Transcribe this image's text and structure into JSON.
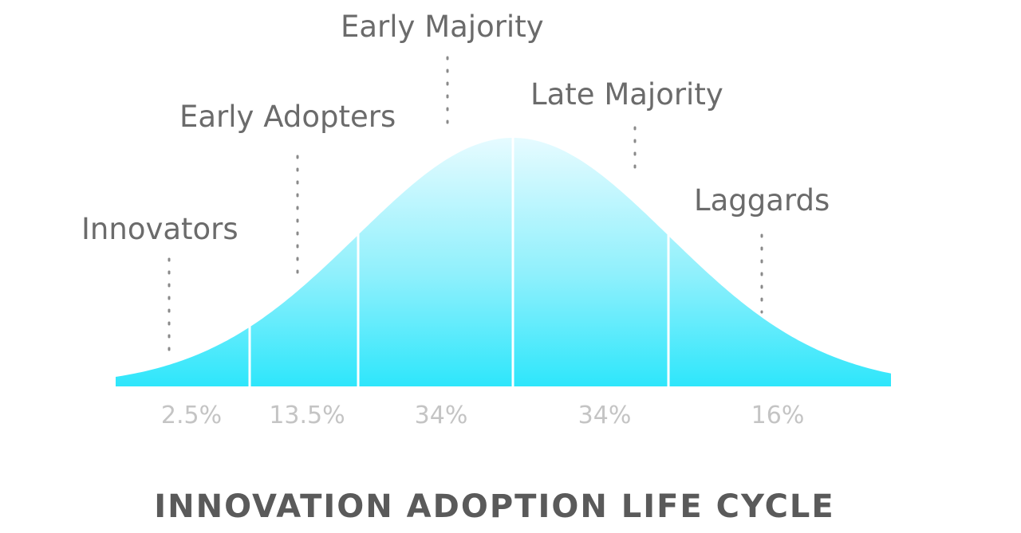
{
  "title": "INNOVATION ADOPTION LIFE CYCLE",
  "colors": {
    "curve_top": "#e6fbff",
    "curve_bottom": "#2ee6fb",
    "label_text": "#6b6b6b",
    "percent_text": "#c4c4c4",
    "title_text": "#5a5a5a"
  },
  "segments": [
    {
      "label": "Innovators",
      "percent": "2.5%"
    },
    {
      "label": "Early Adopters",
      "percent": "13.5%"
    },
    {
      "label": "Early Majority",
      "percent": "34%"
    },
    {
      "label": "Late Majority",
      "percent": "34%"
    },
    {
      "label": "Laggards",
      "percent": "16%"
    }
  ]
}
